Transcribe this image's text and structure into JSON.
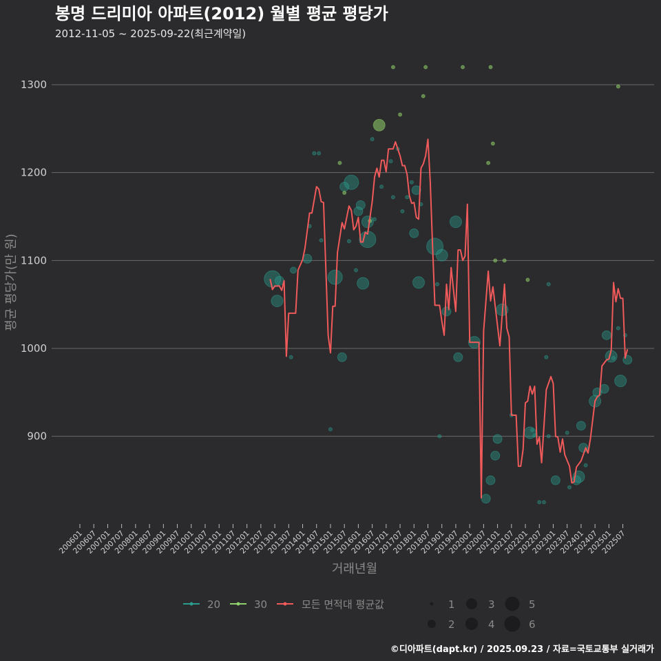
{
  "header": {
    "title": "봉명 드리미아 아파트(2012) 월별 평균 평당가",
    "subtitle": "2012-11-05 ~ 2025-09-22(최근계약일)"
  },
  "footer": {
    "credit": "©디아파트(dapt.kr) / 2025.09.23 / 자료=국토교통부 실거래가"
  },
  "chart_data": {
    "type": "line",
    "title": "봉명 드리미아 아파트(2012) 월별 평균 평당가",
    "xlabel": "거래년월",
    "ylabel": "평균 평당가(만 원)",
    "ylim": [
      800,
      1340
    ],
    "y_ticks": [
      900,
      1000,
      1100,
      1200,
      1300
    ],
    "x_ticks": [
      "200601",
      "200607",
      "200701",
      "200707",
      "200801",
      "200807",
      "200901",
      "200907",
      "201001",
      "201007",
      "201101",
      "201107",
      "201201",
      "201207",
      "201301",
      "201307",
      "201401",
      "201407",
      "201501",
      "201507",
      "201601",
      "201607",
      "201701",
      "201707",
      "201801",
      "201807",
      "201901",
      "201907",
      "202001",
      "202007",
      "202101",
      "202107",
      "202201",
      "202207",
      "202301",
      "202307",
      "202401",
      "202407",
      "202501",
      "202507"
    ],
    "grid": true,
    "legend": {
      "placement": "bottom",
      "series": [
        {
          "label": "20",
          "color": "#2a9d8f"
        },
        {
          "label": "30",
          "color": "#8fd16a"
        },
        {
          "label": "모든 면적대 평균값",
          "color": "#f05a5a"
        }
      ],
      "sizes": [
        "1",
        "2",
        "3",
        "4",
        "5",
        "6"
      ]
    },
    "average_line": [
      [
        "201211",
        1079
      ],
      [
        "201212",
        1067
      ],
      [
        "201301",
        1071
      ],
      [
        "201303",
        1071
      ],
      [
        "201304",
        1066
      ],
      [
        "201305",
        1077
      ],
      [
        "201306",
        991
      ],
      [
        "201307",
        1040
      ],
      [
        "201310",
        1040
      ],
      [
        "201311",
        1089
      ],
      [
        "201401",
        1101
      ],
      [
        "201402",
        1114
      ],
      [
        "201404",
        1154
      ],
      [
        "201405",
        1154
      ],
      [
        "201407",
        1184
      ],
      [
        "201408",
        1181
      ],
      [
        "201409",
        1167
      ],
      [
        "201410",
        1166
      ],
      [
        "201412",
        1015
      ],
      [
        "201501",
        995
      ],
      [
        "201502",
        1048
      ],
      [
        "201503",
        1048
      ],
      [
        "201504",
        1109
      ],
      [
        "201506",
        1143
      ],
      [
        "201507",
        1136
      ],
      [
        "201509",
        1162
      ],
      [
        "201510",
        1157
      ],
      [
        "201511",
        1135
      ],
      [
        "201512",
        1139
      ],
      [
        "201601",
        1149
      ],
      [
        "201602",
        1121
      ],
      [
        "201603",
        1121
      ],
      [
        "201604",
        1132
      ],
      [
        "201605",
        1130
      ],
      [
        "201607",
        1167
      ],
      [
        "201608",
        1195
      ],
      [
        "201609",
        1205
      ],
      [
        "201610",
        1195
      ],
      [
        "201611",
        1214
      ],
      [
        "201612",
        1214
      ],
      [
        "201701",
        1201
      ],
      [
        "201702",
        1227
      ],
      [
        "201704",
        1227
      ],
      [
        "201705",
        1235
      ],
      [
        "201707",
        1219
      ],
      [
        "201708",
        1208
      ],
      [
        "201709",
        1208
      ],
      [
        "201710",
        1198
      ],
      [
        "201711",
        1174
      ],
      [
        "201712",
        1165
      ],
      [
        "201801",
        1166
      ],
      [
        "201802",
        1149
      ],
      [
        "201803",
        1147
      ],
      [
        "201804",
        1205
      ],
      [
        "201805",
        1210
      ],
      [
        "201806",
        1219
      ],
      [
        "201807",
        1238
      ],
      [
        "201808",
        1189
      ],
      [
        "201809",
        1117
      ],
      [
        "201810",
        1049
      ],
      [
        "201812",
        1049
      ],
      [
        "201901",
        1031
      ],
      [
        "201902",
        1015
      ],
      [
        "201903",
        1073
      ],
      [
        "201904",
        1044
      ],
      [
        "201905",
        1092
      ],
      [
        "201907",
        1042
      ],
      [
        "201908",
        1112
      ],
      [
        "201909",
        1112
      ],
      [
        "201910",
        1100
      ],
      [
        "201911",
        1105
      ],
      [
        "201912",
        1164
      ],
      [
        "202001",
        1007
      ],
      [
        "202005",
        1007
      ],
      [
        "202006",
        830
      ],
      [
        "202007",
        1020
      ],
      [
        "202009",
        1088
      ],
      [
        "202010",
        1054
      ],
      [
        "202011",
        1070
      ],
      [
        "202102",
        1003
      ],
      [
        "202104",
        1073
      ],
      [
        "202105",
        1023
      ],
      [
        "202106",
        1013
      ],
      [
        "202107",
        924
      ],
      [
        "202109",
        924
      ],
      [
        "202110",
        866
      ],
      [
        "202111",
        866
      ],
      [
        "202112",
        885
      ],
      [
        "202201",
        938
      ],
      [
        "202202",
        940
      ],
      [
        "202203",
        957
      ],
      [
        "202204",
        948
      ],
      [
        "202205",
        957
      ],
      [
        "202206",
        891
      ],
      [
        "202207",
        899
      ],
      [
        "202208",
        870
      ],
      [
        "202210",
        953
      ],
      [
        "202212",
        968
      ],
      [
        "202301",
        960
      ],
      [
        "202302",
        900
      ],
      [
        "202303",
        899
      ],
      [
        "202304",
        882
      ],
      [
        "202305",
        897
      ],
      [
        "202306",
        879
      ],
      [
        "202308",
        866
      ],
      [
        "202309",
        847
      ],
      [
        "202310",
        848
      ],
      [
        "202311",
        865
      ],
      [
        "202401",
        872
      ],
      [
        "202403",
        887
      ],
      [
        "202404",
        881
      ],
      [
        "202405",
        897
      ],
      [
        "202407",
        940
      ],
      [
        "202408",
        945
      ],
      [
        "202409",
        947
      ],
      [
        "202410",
        980
      ],
      [
        "202412",
        987
      ],
      [
        "202501",
        988
      ],
      [
        "202502",
        998
      ],
      [
        "202503",
        1075
      ],
      [
        "202504",
        1053
      ],
      [
        "202505",
        1068
      ],
      [
        "202506",
        1057
      ],
      [
        "202507",
        1057
      ],
      [
        "202508",
        989
      ],
      [
        "202509",
        999
      ]
    ],
    "transactions": [
      [
        "201212",
        1079,
        6,
        "20"
      ],
      [
        "201302",
        1054,
        4,
        "20"
      ],
      [
        "201303",
        1077,
        3,
        "20"
      ],
      [
        "201308",
        990,
        1,
        "20"
      ],
      [
        "201309",
        1089,
        2,
        "20"
      ],
      [
        "201403",
        1102,
        3,
        "20"
      ],
      [
        "201404",
        1139,
        1,
        "20"
      ],
      [
        "201406",
        1222,
        1,
        "20"
      ],
      [
        "201408",
        1222,
        1,
        "20"
      ],
      [
        "201409",
        1123,
        1,
        "20"
      ],
      [
        "201501",
        908,
        1,
        "20"
      ],
      [
        "201503",
        1081,
        5,
        "20"
      ],
      [
        "201505",
        1211,
        1,
        "30"
      ],
      [
        "201506",
        990,
        3,
        "20"
      ],
      [
        "201507",
        1184,
        3,
        "20"
      ],
      [
        "201507",
        1177,
        1,
        "30"
      ],
      [
        "201509",
        1122,
        1,
        "20"
      ],
      [
        "201510",
        1189,
        5,
        "20"
      ],
      [
        "201512",
        1089,
        1,
        "20"
      ],
      [
        "201601",
        1156,
        3,
        "20"
      ],
      [
        "201602",
        1163,
        3,
        "20"
      ],
      [
        "201603",
        1074,
        4,
        "20"
      ],
      [
        "201605",
        1144,
        4,
        "20"
      ],
      [
        "201605",
        1124,
        6,
        "20"
      ],
      [
        "201606",
        1145,
        1,
        "30"
      ],
      [
        "201607",
        1238,
        1,
        "20"
      ],
      [
        "201608",
        1147,
        1,
        "20"
      ],
      [
        "201610",
        1254,
        4,
        "30"
      ],
      [
        "201611",
        1184,
        1,
        "20"
      ],
      [
        "201703",
        1213,
        1,
        "20"
      ],
      [
        "201704",
        1320,
        1,
        "30"
      ],
      [
        "201704",
        1172,
        1,
        "20"
      ],
      [
        "201706",
        1227,
        1,
        "20"
      ],
      [
        "201707",
        1266,
        1,
        "30"
      ],
      [
        "201708",
        1156,
        1,
        "20"
      ],
      [
        "201710",
        1172,
        1,
        "20"
      ],
      [
        "201712",
        1189,
        1,
        "20"
      ],
      [
        "201801",
        1131,
        3,
        "20"
      ],
      [
        "201802",
        1180,
        3,
        "20"
      ],
      [
        "201803",
        1075,
        4,
        "20"
      ],
      [
        "201804",
        1164,
        1,
        "20"
      ],
      [
        "201805",
        1287,
        1,
        "30"
      ],
      [
        "201806",
        1320,
        1,
        "30"
      ],
      [
        "201810",
        1116,
        6,
        "20"
      ],
      [
        "201811",
        1073,
        1,
        "20"
      ],
      [
        "201812",
        900,
        1,
        "20"
      ],
      [
        "201901",
        1106,
        4,
        "20"
      ],
      [
        "201903",
        1042,
        3,
        "20"
      ],
      [
        "201907",
        1144,
        4,
        "20"
      ],
      [
        "201908",
        990,
        3,
        "20"
      ],
      [
        "201910",
        1320,
        1,
        "30"
      ],
      [
        "202003",
        1007,
        4,
        "20"
      ],
      [
        "202008",
        829,
        3,
        "20"
      ],
      [
        "202009",
        1211,
        1,
        "30"
      ],
      [
        "202010",
        1320,
        1,
        "30"
      ],
      [
        "202010",
        850,
        3,
        "20"
      ],
      [
        "202011",
        1233,
        1,
        "30"
      ],
      [
        "202012",
        878,
        3,
        "20"
      ],
      [
        "202012",
        1100,
        1,
        "30"
      ],
      [
        "202101",
        897,
        3,
        "20"
      ],
      [
        "202103",
        1044,
        4,
        "20"
      ],
      [
        "202104",
        1100,
        1,
        "30"
      ],
      [
        "202107",
        924,
        1,
        "20"
      ],
      [
        "202202",
        1078,
        1,
        "30"
      ],
      [
        "202203",
        904,
        4,
        "20"
      ],
      [
        "202204",
        907,
        1,
        "20"
      ],
      [
        "202205",
        901,
        1,
        "20"
      ],
      [
        "202207",
        825,
        1,
        "20"
      ],
      [
        "202209",
        825,
        1,
        "20"
      ],
      [
        "202210",
        990,
        1,
        "20"
      ],
      [
        "202211",
        1073,
        1,
        "20"
      ],
      [
        "202211",
        900,
        1,
        "20"
      ],
      [
        "202302",
        850,
        3,
        "20"
      ],
      [
        "202307",
        904,
        1,
        "20"
      ],
      [
        "202308",
        842,
        1,
        "20"
      ],
      [
        "202311",
        850,
        3,
        "20"
      ],
      [
        "202312",
        854,
        4,
        "20"
      ],
      [
        "202401",
        912,
        3,
        "20"
      ],
      [
        "202402",
        887,
        3,
        "20"
      ],
      [
        "202403",
        867,
        1,
        "20"
      ],
      [
        "202407",
        940,
        4,
        "20"
      ],
      [
        "202408",
        950,
        3,
        "20"
      ],
      [
        "202411",
        954,
        3,
        "20"
      ],
      [
        "202412",
        1015,
        3,
        "20"
      ],
      [
        "202502",
        991,
        4,
        "20"
      ],
      [
        "202503",
        989,
        1,
        "20"
      ],
      [
        "202505",
        1023,
        1,
        "20"
      ],
      [
        "202505",
        1298,
        1,
        "30"
      ],
      [
        "202506",
        963,
        4,
        "20"
      ],
      [
        "202508",
        1015,
        1,
        "20"
      ],
      [
        "202509",
        987,
        3,
        "20"
      ]
    ]
  }
}
